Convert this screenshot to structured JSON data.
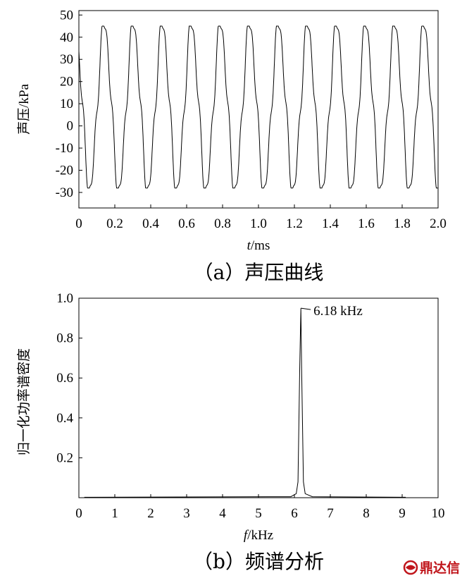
{
  "chart_data": [
    {
      "type": "line",
      "xlabel": "t/ms",
      "xlabel_italic": "t",
      "xlabel_unit": "/ms",
      "ylabel": "声压/kPa",
      "xlim": [
        0,
        2.0
      ],
      "ylim": [
        -37,
        52
      ],
      "xticks": [
        "0",
        "0.2",
        "0.4",
        "0.6",
        "0.8",
        "1.0",
        "1.2",
        "1.4",
        "1.6",
        "1.8",
        "2.0"
      ],
      "xtick_values": [
        0,
        0.2,
        0.4,
        0.6,
        0.8,
        1.0,
        1.2,
        1.4,
        1.6,
        1.8,
        2.0
      ],
      "yticks": [
        "50",
        "40",
        "30",
        "20",
        "10",
        "0",
        "-10",
        "-20",
        "-30"
      ],
      "ytick_values": [
        50,
        40,
        30,
        20,
        10,
        0,
        -10,
        -20,
        -30
      ],
      "series": [
        {
          "frequency_khz": 6.18,
          "max": 45,
          "min": -28,
          "shoulder": 40
        }
      ],
      "caption": "（a）声压曲线",
      "grid": false
    },
    {
      "type": "line",
      "xlabel": "f/kHz",
      "xlabel_italic": "f",
      "xlabel_unit": "/kHz",
      "ylabel": "归一化功率谱密度",
      "xlim": [
        0,
        10
      ],
      "ylim": [
        0,
        1.0
      ],
      "xticks": [
        "0",
        "1",
        "2",
        "3",
        "4",
        "5",
        "6",
        "7",
        "8",
        "9",
        "10"
      ],
      "xtick_values": [
        0,
        1,
        2,
        3,
        4,
        5,
        6,
        7,
        8,
        9,
        10
      ],
      "yticks": [
        "1.0",
        "0.8",
        "0.6",
        "0.4",
        "0.2"
      ],
      "ytick_values": [
        1.0,
        0.8,
        0.6,
        0.4,
        0.2
      ],
      "series": [
        {
          "x": [
            0.15,
            5.9,
            6.05,
            6.1,
            6.15,
            6.18,
            6.2,
            6.25,
            6.3,
            6.5,
            9.1
          ],
          "y": [
            0.002,
            0.005,
            0.02,
            0.08,
            0.66,
            0.95,
            0.66,
            0.08,
            0.02,
            0.005,
            0.002
          ]
        }
      ],
      "annotations": [
        {
          "text": "6.18 kHz",
          "x": 6.18,
          "y": 0.95
        }
      ],
      "caption": "（b）频谱分析",
      "grid": false
    }
  ],
  "watermark": {
    "text": "鼎达信",
    "color": "#c0151b"
  }
}
